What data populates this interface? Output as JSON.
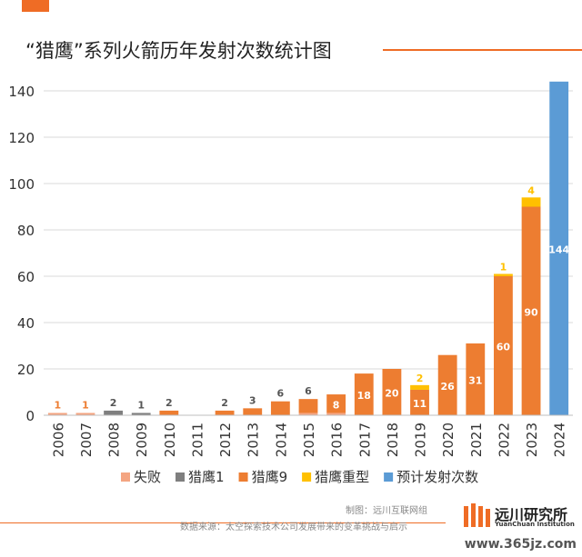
{
  "title": "“猎鹰”系列火箭历年发射次数统计图",
  "colors": {
    "accent": "#ef6c25",
    "failure": "#f4a582",
    "falcon1": "#7f7f7f",
    "falcon9": "#ed7d31",
    "falcon_heavy": "#ffc000",
    "projected": "#5b9bd5",
    "grid": "#d9d9d9"
  },
  "chart_data": {
    "type": "bar",
    "stacked": true,
    "categories": [
      "2006",
      "2007",
      "2008",
      "2009",
      "2010",
      "2011",
      "2012",
      "2013",
      "2014",
      "2015",
      "2016",
      "2017",
      "2018",
      "2019",
      "2020",
      "2021",
      "2022",
      "2023",
      "2024"
    ],
    "series": [
      {
        "name": "失败",
        "color_key": "failure",
        "values": [
          1,
          1,
          0,
          0,
          0,
          0,
          0,
          0,
          0,
          1,
          1,
          0,
          0,
          0,
          0,
          0,
          0,
          0,
          0
        ]
      },
      {
        "name": "猎鹰1",
        "color_key": "falcon1",
        "values": [
          0,
          0,
          2,
          1,
          0,
          0,
          0,
          0,
          0,
          0,
          0,
          0,
          0,
          0,
          0,
          0,
          0,
          0,
          0
        ]
      },
      {
        "name": "猎鹰9",
        "color_key": "falcon9",
        "values": [
          0,
          0,
          0,
          0,
          2,
          0,
          2,
          3,
          6,
          6,
          8,
          18,
          20,
          11,
          26,
          31,
          60,
          90,
          0
        ]
      },
      {
        "name": "猎鹰重型",
        "color_key": "falcon_heavy",
        "values": [
          0,
          0,
          0,
          0,
          0,
          0,
          0,
          0,
          0,
          0,
          0,
          0,
          0,
          2,
          0,
          0,
          1,
          4,
          0
        ]
      },
      {
        "name": "预计发射次数",
        "color_key": "projected",
        "values": [
          0,
          0,
          0,
          0,
          0,
          0,
          0,
          0,
          0,
          0,
          0,
          0,
          0,
          0,
          0,
          0,
          0,
          0,
          144
        ]
      }
    ],
    "ylim": [
      0,
      144
    ],
    "yticks": [
      0,
      20,
      40,
      60,
      80,
      100,
      120,
      140
    ],
    "grid": true,
    "legend": "bottom"
  },
  "footer": {
    "made_by": "制图：远川互联网组",
    "source": "数据来源：太空探索技术公司发展带来的变革挑战与启示"
  },
  "brand": {
    "name": "远川研究所",
    "sub": "YuanChuan Institution"
  },
  "watermark": "www.365jz.com"
}
